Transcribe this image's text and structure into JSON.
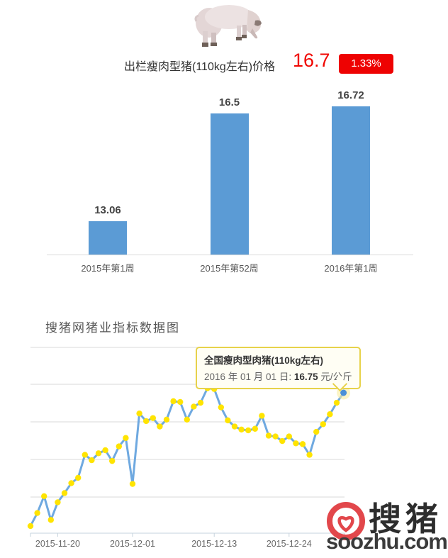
{
  "header": {
    "title": "出栏瘦肉型猪(110kg左右)价格",
    "price": "16.7",
    "change": "1.33%",
    "price_color": "#f00500",
    "badge_color": "#ee0202"
  },
  "section2": {
    "title": "搜猪网猪业指标数据图"
  },
  "tooltip": {
    "title": "全国瘦肉型肉猪(110kg左右)",
    "date_label": "2016 年 01 月 01 日:",
    "value": "16.75",
    "unit": "元/公斤"
  },
  "logo": {
    "cn": "搜猪",
    "domain": "soozhu.com",
    "red": "#e2474b"
  },
  "icons": {
    "pig": "pig-photo",
    "logo_mark": "soozhu-ring-heart-mark"
  },
  "chart_data": [
    {
      "type": "bar",
      "title": "出栏瘦肉型猪(110kg左右)价格",
      "categories": [
        "2015年第1周",
        "2015年第52周",
        "2016年第1周"
      ],
      "values": [
        13.06,
        16.5,
        16.72
      ],
      "value_labels": [
        "13.06",
        "16.5",
        "16.72"
      ],
      "bar_color": "#5B9BD5",
      "ylim": [
        12,
        17.2
      ],
      "grid": false,
      "unit": "元/公斤"
    },
    {
      "type": "line",
      "title": "搜猪网猪业指标数据图",
      "legend_position": "none",
      "grid": true,
      "line_color": "#6FA9E0",
      "marker_color": "#FFE400",
      "last_point_color": "#4a90d8",
      "last_point_halo": "#f8eda0",
      "x_axis_ticks": [
        "2015-11-20",
        "2015-12-01",
        "2015-12-13",
        "2015-12-24"
      ],
      "series": [
        {
          "name": "全国瘦肉型肉猪(110kg左右)",
          "unit": "元/公斤",
          "dates": [
            "2015-11-16",
            "2015-11-17",
            "2015-11-18",
            "2015-11-19",
            "2015-11-20",
            "2015-11-21",
            "2015-11-22",
            "2015-11-23",
            "2015-11-24",
            "2015-11-25",
            "2015-11-26",
            "2015-11-27",
            "2015-11-28",
            "2015-11-29",
            "2015-11-30",
            "2015-12-01",
            "2015-12-02",
            "2015-12-03",
            "2015-12-04",
            "2015-12-05",
            "2015-12-06",
            "2015-12-07",
            "2015-12-08",
            "2015-12-09",
            "2015-12-10",
            "2015-12-11",
            "2015-12-12",
            "2015-12-13",
            "2015-12-14",
            "2015-12-15",
            "2015-12-16",
            "2015-12-17",
            "2015-12-18",
            "2015-12-19",
            "2015-12-20",
            "2015-12-21",
            "2015-12-22",
            "2015-12-23",
            "2015-12-24",
            "2015-12-25",
            "2015-12-26",
            "2015-12-27",
            "2015-12-28",
            "2015-12-29",
            "2015-12-30",
            "2015-12-31",
            "2016-01-01"
          ],
          "values": [
            15.01,
            15.18,
            15.4,
            15.09,
            15.32,
            15.44,
            15.57,
            15.64,
            15.94,
            15.87,
            15.96,
            16.0,
            15.86,
            16.05,
            16.16,
            15.56,
            16.48,
            16.38,
            16.42,
            16.31,
            16.4,
            16.64,
            16.63,
            16.4,
            16.57,
            16.62,
            16.81,
            16.8,
            16.56,
            16.39,
            16.31,
            16.27,
            16.26,
            16.28,
            16.45,
            16.19,
            16.18,
            16.12,
            16.18,
            16.09,
            16.08,
            15.94,
            16.24,
            16.34,
            16.47,
            16.62,
            16.75
          ]
        }
      ]
    }
  ]
}
